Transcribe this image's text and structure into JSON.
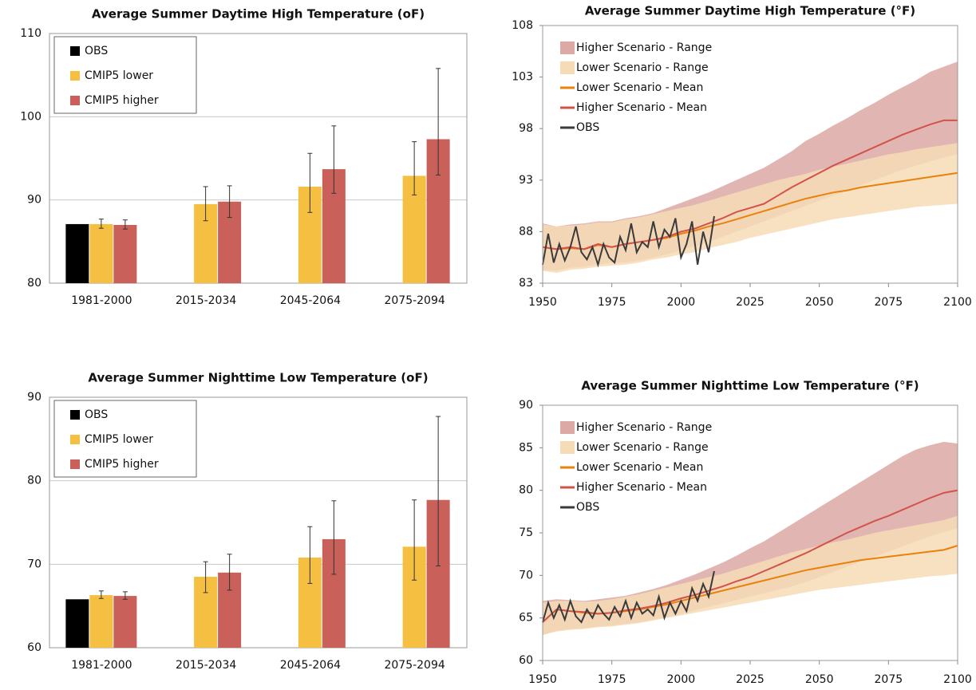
{
  "chart_data": [
    {
      "type": "bar",
      "title": "Average Summer Daytime High Temperature (oF)",
      "categories": [
        "1981-2000",
        "2015-2034",
        "2045-2064",
        "2075-2094"
      ],
      "ylim": [
        80,
        110
      ],
      "yticks": [
        80,
        90,
        100,
        110
      ],
      "grid": true,
      "legend": "upper left",
      "series": [
        {
          "name": "OBS",
          "color": "#000000",
          "values": [
            87.1,
            null,
            null,
            null
          ]
        },
        {
          "name": "CMIP5 lower",
          "color": "#f5bf42",
          "values": [
            87.1,
            89.5,
            91.6,
            92.9
          ],
          "lower": [
            86.6,
            87.5,
            88.5,
            90.6
          ],
          "upper": [
            87.7,
            91.6,
            95.6,
            97.0
          ]
        },
        {
          "name": "CMIP5 higher",
          "color": "#c9605a",
          "values": [
            87.0,
            89.8,
            93.7,
            97.3
          ],
          "lower": [
            86.5,
            87.9,
            90.8,
            93.0
          ],
          "upper": [
            87.6,
            91.7,
            98.9,
            105.8
          ]
        }
      ]
    },
    {
      "type": "line",
      "title": "Average Summer Daytime High Temperature (°F)",
      "xlim": [
        1950,
        2100
      ],
      "xticks": [
        1950,
        1975,
        2000,
        2025,
        2050,
        2075,
        2100
      ],
      "ylim": [
        83,
        108
      ],
      "yticks": [
        83,
        88,
        93,
        98,
        103,
        108
      ],
      "legend": "upper left",
      "x": [
        1950,
        1955,
        1960,
        1965,
        1970,
        1975,
        1980,
        1985,
        1990,
        1995,
        2000,
        2005,
        2010,
        2015,
        2020,
        2025,
        2030,
        2035,
        2040,
        2045,
        2050,
        2055,
        2060,
        2065,
        2070,
        2075,
        2080,
        2085,
        2090,
        2095,
        2100
      ],
      "series": [
        {
          "name": "Higher Scenario - Range",
          "type": "band",
          "color": "#dca9a5",
          "low": [
            84.3,
            84.2,
            84.5,
            84.6,
            84.8,
            85.0,
            85.0,
            85.2,
            85.5,
            85.8,
            86.2,
            86.6,
            87.0,
            87.5,
            88.0,
            88.5,
            89.0,
            89.5,
            90.0,
            90.5,
            91.0,
            91.5,
            92.0,
            92.5,
            93.0,
            93.5,
            94.0,
            94.4,
            94.8,
            95.2,
            95.5
          ],
          "high": [
            88.8,
            88.5,
            88.7,
            88.8,
            89.0,
            89.0,
            89.3,
            89.5,
            89.8,
            90.3,
            90.8,
            91.3,
            91.8,
            92.4,
            93.0,
            93.6,
            94.2,
            95.0,
            95.8,
            96.8,
            97.5,
            98.3,
            99.0,
            99.8,
            100.5,
            101.3,
            102.0,
            102.7,
            103.5,
            104.0,
            104.5
          ]
        },
        {
          "name": "Lower Scenario - Range",
          "type": "band",
          "color": "#f6dcb6",
          "low": [
            84.2,
            84.0,
            84.3,
            84.4,
            84.6,
            84.7,
            84.8,
            85.0,
            85.3,
            85.5,
            85.8,
            86.0,
            86.4,
            86.7,
            87.0,
            87.4,
            87.7,
            88.0,
            88.3,
            88.6,
            88.9,
            89.2,
            89.4,
            89.6,
            89.8,
            90.0,
            90.2,
            90.4,
            90.5,
            90.6,
            90.7
          ],
          "high": [
            88.7,
            88.5,
            88.6,
            88.7,
            88.9,
            88.9,
            89.2,
            89.4,
            89.7,
            90.0,
            90.3,
            90.6,
            91.0,
            91.4,
            91.8,
            92.2,
            92.6,
            93.0,
            93.3,
            93.6,
            94.0,
            94.3,
            94.6,
            94.9,
            95.2,
            95.5,
            95.7,
            96.0,
            96.2,
            96.4,
            96.6
          ]
        },
        {
          "name": "Lower Scenario - Mean",
          "type": "line",
          "color": "#e8820c",
          "values": [
            86.5,
            86.3,
            86.4,
            86.3,
            86.7,
            86.5,
            86.8,
            87.0,
            87.2,
            87.4,
            87.8,
            88.1,
            88.5,
            88.8,
            89.2,
            89.6,
            90.0,
            90.4,
            90.8,
            91.2,
            91.5,
            91.8,
            92.0,
            92.3,
            92.5,
            92.7,
            92.9,
            93.1,
            93.3,
            93.5,
            93.7
          ]
        },
        {
          "name": "Higher Scenario - Mean",
          "type": "line",
          "color": "#d2534a",
          "values": [
            86.5,
            86.3,
            86.5,
            86.3,
            86.8,
            86.5,
            86.8,
            87.0,
            87.2,
            87.5,
            88.0,
            88.3,
            88.8,
            89.3,
            89.9,
            90.3,
            90.7,
            91.5,
            92.3,
            93.0,
            93.7,
            94.4,
            95.0,
            95.6,
            96.2,
            96.8,
            97.4,
            97.9,
            98.4,
            98.8,
            98.8
          ]
        },
        {
          "name": "OBS",
          "type": "line",
          "color": "#3a3a3a",
          "x": [
            1950,
            1952,
            1954,
            1956,
            1958,
            1960,
            1962,
            1964,
            1966,
            1968,
            1970,
            1972,
            1974,
            1976,
            1978,
            1980,
            1982,
            1984,
            1986,
            1988,
            1990,
            1992,
            1994,
            1996,
            1998,
            2000,
            2002,
            2004,
            2006,
            2008,
            2010,
            2012
          ],
          "values": [
            84.8,
            87.8,
            85.0,
            86.8,
            85.2,
            86.5,
            88.5,
            86.0,
            85.3,
            86.5,
            84.8,
            86.8,
            85.5,
            85.0,
            87.5,
            86.2,
            88.8,
            86.0,
            87.0,
            86.5,
            89.0,
            86.5,
            88.2,
            87.5,
            89.3,
            85.5,
            86.8,
            89.0,
            84.8,
            88.0,
            86.0,
            89.5
          ]
        }
      ]
    },
    {
      "type": "bar",
      "title": "Average Summer Nighttime Low Temperature (oF)",
      "categories": [
        "1981-2000",
        "2015-2034",
        "2045-2064",
        "2075-2094"
      ],
      "ylim": [
        60,
        90
      ],
      "yticks": [
        60,
        70,
        80,
        90
      ],
      "grid": true,
      "legend": "upper left",
      "series": [
        {
          "name": "OBS",
          "color": "#000000",
          "values": [
            65.8,
            null,
            null,
            null
          ]
        },
        {
          "name": "CMIP5 lower",
          "color": "#f5bf42",
          "values": [
            66.3,
            68.5,
            70.8,
            72.1
          ],
          "lower": [
            65.9,
            66.6,
            67.7,
            68.1
          ],
          "upper": [
            66.8,
            70.3,
            74.5,
            77.7
          ]
        },
        {
          "name": "CMIP5 higher",
          "color": "#c9605a",
          "values": [
            66.2,
            69.0,
            73.0,
            77.7
          ],
          "lower": [
            65.8,
            66.9,
            68.8,
            69.8
          ],
          "upper": [
            66.7,
            71.2,
            77.6,
            87.7
          ]
        }
      ]
    },
    {
      "type": "line",
      "title": "Average Summer Nighttime Low Temperature (°F)",
      "xlim": [
        1950,
        2100
      ],
      "xticks": [
        1950,
        1975,
        2000,
        2025,
        2050,
        2075,
        2100
      ],
      "ylim": [
        60,
        90
      ],
      "yticks": [
        60,
        65,
        70,
        75,
        80,
        85,
        90
      ],
      "legend": "upper left",
      "x": [
        1950,
        1955,
        1960,
        1965,
        1970,
        1975,
        1980,
        1985,
        1990,
        1995,
        2000,
        2005,
        2010,
        2015,
        2020,
        2025,
        2030,
        2035,
        2040,
        2045,
        2050,
        2055,
        2060,
        2065,
        2070,
        2075,
        2080,
        2085,
        2090,
        2095,
        2100
      ],
      "series": [
        {
          "name": "Higher Scenario - Range",
          "type": "band",
          "color": "#dca9a5",
          "low": [
            63.0,
            63.5,
            63.7,
            63.8,
            64.0,
            64.1,
            64.3,
            64.5,
            64.8,
            65.1,
            65.5,
            65.9,
            66.3,
            66.7,
            67.1,
            67.5,
            67.9,
            68.3,
            68.7,
            69.2,
            69.8,
            70.4,
            71.0,
            71.6,
            72.2,
            72.8,
            73.4,
            74.0,
            74.6,
            75.1,
            75.5
          ],
          "high": [
            67.0,
            67.2,
            67.1,
            67.0,
            67.2,
            67.4,
            67.6,
            68.0,
            68.4,
            68.9,
            69.5,
            70.1,
            70.8,
            71.5,
            72.3,
            73.2,
            74.0,
            75.0,
            76.0,
            77.0,
            78.0,
            79.0,
            80.0,
            81.0,
            82.0,
            83.0,
            84.0,
            84.8,
            85.3,
            85.7,
            85.5
          ]
        },
        {
          "name": "Lower Scenario - Range",
          "type": "band",
          "color": "#f6dcb6",
          "low": [
            63.0,
            63.4,
            63.6,
            63.7,
            63.9,
            64.0,
            64.2,
            64.4,
            64.7,
            65.0,
            65.3,
            65.6,
            65.9,
            66.2,
            66.5,
            66.8,
            67.1,
            67.4,
            67.7,
            68.0,
            68.3,
            68.5,
            68.7,
            68.9,
            69.1,
            69.3,
            69.5,
            69.7,
            69.9,
            70.0,
            70.2
          ],
          "high": [
            66.8,
            67.0,
            67.0,
            66.9,
            67.0,
            67.2,
            67.5,
            67.8,
            68.2,
            68.6,
            69.0,
            69.4,
            69.8,
            70.2,
            70.7,
            71.2,
            71.7,
            72.2,
            72.7,
            73.1,
            73.5,
            73.9,
            74.2,
            74.6,
            75.0,
            75.3,
            75.6,
            75.9,
            76.2,
            76.5,
            77.0
          ]
        },
        {
          "name": "Lower Scenario - Mean",
          "type": "line",
          "color": "#e8820c",
          "values": [
            64.5,
            66.0,
            65.8,
            65.6,
            65.5,
            65.6,
            65.8,
            66.0,
            66.3,
            66.6,
            67.0,
            67.4,
            67.8,
            68.2,
            68.6,
            69.0,
            69.4,
            69.8,
            70.2,
            70.6,
            70.9,
            71.2,
            71.5,
            71.8,
            72.0,
            72.2,
            72.4,
            72.6,
            72.8,
            73.0,
            73.5
          ]
        },
        {
          "name": "Higher Scenario - Mean",
          "type": "line",
          "color": "#d2534a",
          "values": [
            64.5,
            66.0,
            65.8,
            65.7,
            65.5,
            65.6,
            65.9,
            66.1,
            66.4,
            66.8,
            67.3,
            67.7,
            68.2,
            68.7,
            69.3,
            69.8,
            70.5,
            71.2,
            71.9,
            72.6,
            73.4,
            74.2,
            75.0,
            75.7,
            76.4,
            77.0,
            77.7,
            78.4,
            79.1,
            79.7,
            80.0
          ]
        },
        {
          "name": "OBS",
          "type": "line",
          "color": "#3a3a3a",
          "x": [
            1950,
            1952,
            1954,
            1956,
            1958,
            1960,
            1962,
            1964,
            1966,
            1968,
            1970,
            1972,
            1974,
            1976,
            1978,
            1980,
            1982,
            1984,
            1986,
            1988,
            1990,
            1992,
            1994,
            1996,
            1998,
            2000,
            2002,
            2004,
            2006,
            2008,
            2010,
            2012
          ],
          "values": [
            64.5,
            66.8,
            65.0,
            66.5,
            64.8,
            67.0,
            65.2,
            64.5,
            66.0,
            65.0,
            66.5,
            65.5,
            64.8,
            66.3,
            65.2,
            67.0,
            65.0,
            66.8,
            65.5,
            66.0,
            65.3,
            67.5,
            65.0,
            66.8,
            65.5,
            67.0,
            65.8,
            68.5,
            67.0,
            69.0,
            67.5,
            70.5
          ]
        }
      ]
    }
  ]
}
